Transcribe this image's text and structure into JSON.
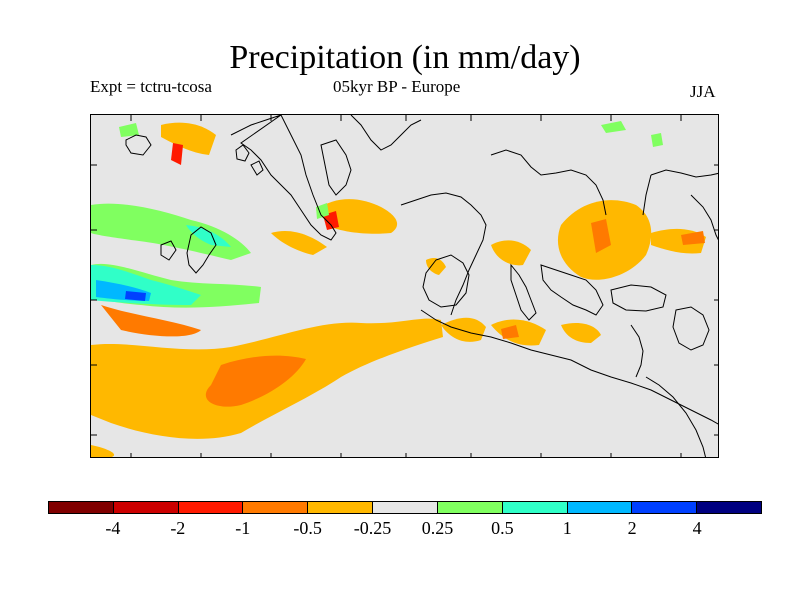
{
  "figure": {
    "title": "Precipitation (in mm/day)",
    "subtitle_left": "Expt = tctru-tcosa",
    "subtitle_center": "05kyr BP - Europe",
    "subtitle_right": "JJA"
  },
  "legend": {
    "colors": [
      "#800000",
      "#cc0000",
      "#ff1a00",
      "#ff7a00",
      "#ffb800",
      "#e6e6e6",
      "#80ff60",
      "#30ffc8",
      "#00b8ff",
      "#0040ff",
      "#000080"
    ],
    "labels": [
      "-4",
      "-2",
      "-1",
      "-0.5",
      "-0.25",
      "0.25",
      "0.5",
      "1",
      "2",
      "4"
    ]
  },
  "map_colors": {
    "background": "#e6e6e6",
    "orange": "#ffb800",
    "dark_orange": "#ff7a00",
    "red": "#ff1a00",
    "green": "#80ff60",
    "cyan": "#30ffc8",
    "light_blue": "#00b8ff",
    "blue": "#0040ff"
  }
}
